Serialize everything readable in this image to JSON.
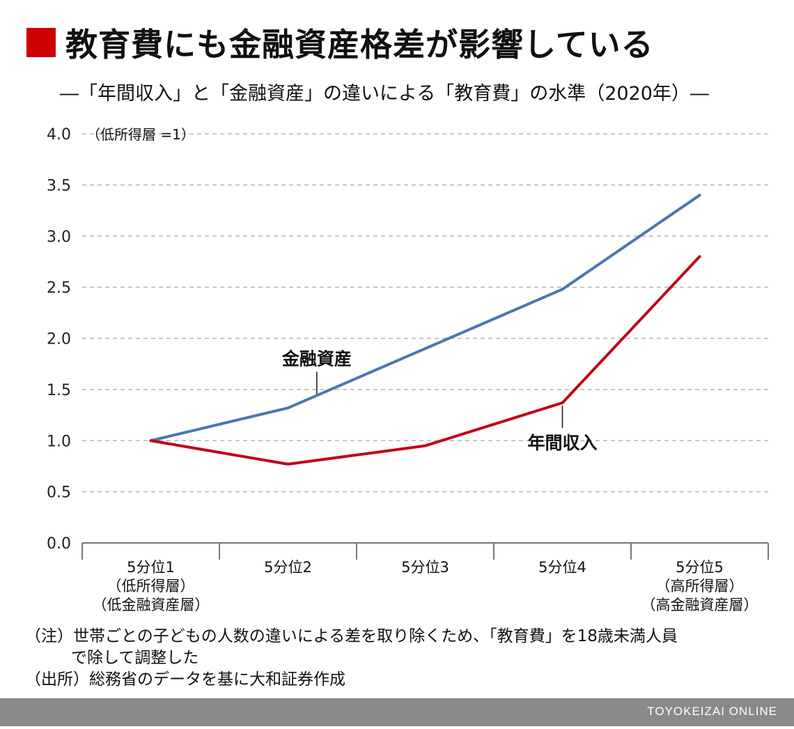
{
  "header": {
    "title": "教育費にも金融資産格差が影響している",
    "subtitle": "―「年間収入」と「金融資産」の違いによる「教育費」の水準（2020年）―"
  },
  "chart_data": {
    "type": "line",
    "unit_label": "（低所得層 =1）",
    "ylim": [
      0,
      4.0
    ],
    "yticks": [
      "0.0",
      "0.5",
      "1.0",
      "1.5",
      "2.0",
      "2.5",
      "3.0",
      "3.5",
      "4.0"
    ],
    "grid": true,
    "categories": [
      [
        "5分位1",
        "（低所得層）",
        "（低金融資産層）"
      ],
      [
        "5分位2"
      ],
      [
        "5分位3"
      ],
      [
        "5分位4"
      ],
      [
        "5分位5",
        "（高所得層）",
        "（高金融資産層）"
      ]
    ],
    "series": [
      {
        "name": "金融資産",
        "color": "#4a78b0",
        "values": [
          1.0,
          1.32,
          1.9,
          2.48,
          3.4
        ]
      },
      {
        "name": "年間収入",
        "color": "#c0001a",
        "values": [
          1.0,
          0.77,
          0.95,
          1.37,
          2.8
        ]
      }
    ]
  },
  "notes": {
    "line1": "（注）世帯ごとの子どもの人数の違いによる差を取り除くため、「教育費」を18歳未満人員",
    "line2": "で除して調整した",
    "line3": "（出所）総務省のデータを基に大和証券作成"
  },
  "footer": {
    "brand": "TOYOKEIZAI ONLINE"
  }
}
